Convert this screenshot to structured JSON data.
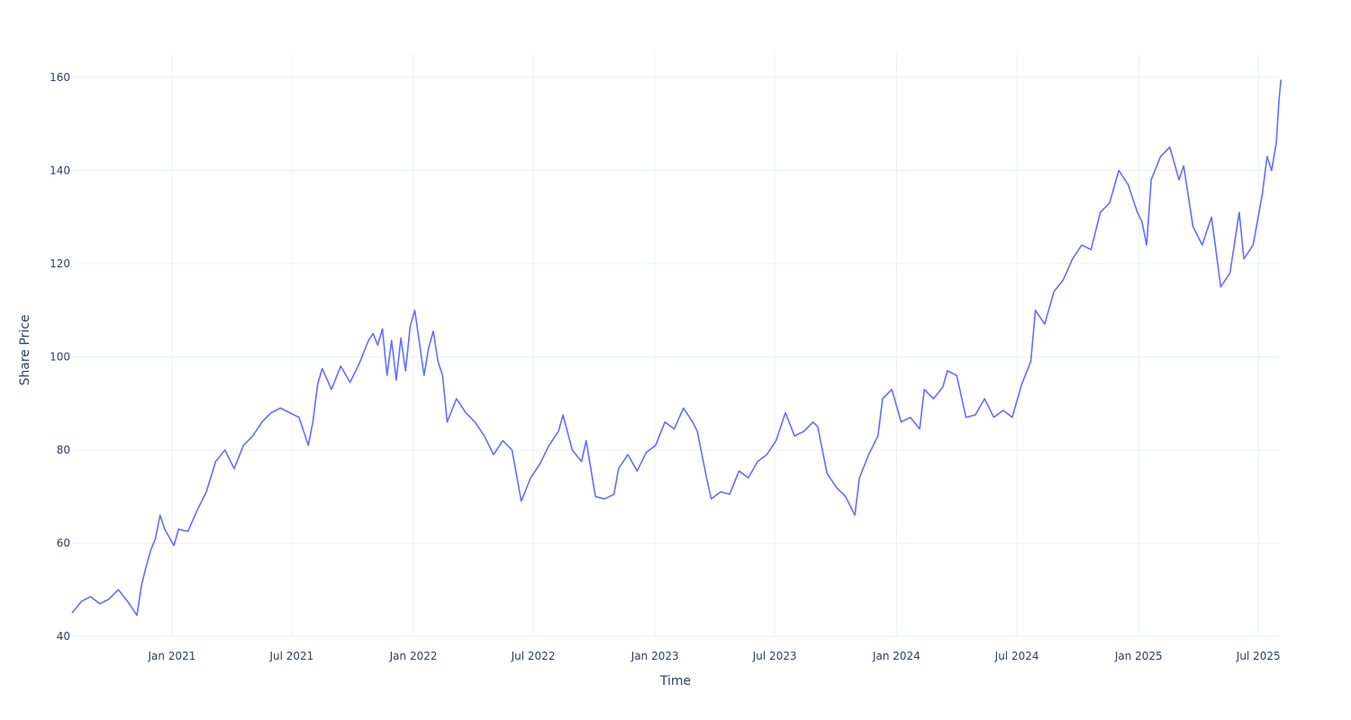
{
  "chart_data": {
    "type": "line",
    "title": "",
    "xlabel": "Time",
    "ylabel": "Share Price",
    "x_range": [
      "2020-08-03",
      "2025-08-01"
    ],
    "ylim": [
      40,
      165
    ],
    "grid": true,
    "legend": "none",
    "x_ticks": [
      {
        "date": "2021-01-01",
        "label": "Jan 2021"
      },
      {
        "date": "2021-07-01",
        "label": "Jul 2021"
      },
      {
        "date": "2022-01-01",
        "label": "Jan 2022"
      },
      {
        "date": "2022-07-01",
        "label": "Jul 2022"
      },
      {
        "date": "2023-01-01",
        "label": "Jan 2023"
      },
      {
        "date": "2023-07-01",
        "label": "Jul 2023"
      },
      {
        "date": "2024-01-01",
        "label": "Jan 2024"
      },
      {
        "date": "2024-07-01",
        "label": "Jul 2024"
      },
      {
        "date": "2025-01-01",
        "label": "Jan 2025"
      },
      {
        "date": "2025-07-01",
        "label": "Jul 2025"
      }
    ],
    "y_ticks": [
      {
        "value": 40,
        "label": "40"
      },
      {
        "value": 60,
        "label": "60"
      },
      {
        "value": 80,
        "label": "80"
      },
      {
        "value": 100,
        "label": "100"
      },
      {
        "value": 120,
        "label": "120"
      },
      {
        "value": 140,
        "label": "140"
      },
      {
        "value": 160,
        "label": "160"
      }
    ],
    "series": [
      {
        "color": "#636efa",
        "points": [
          [
            "2020-08-03",
            45
          ],
          [
            "2020-08-17",
            47.5
          ],
          [
            "2020-08-31",
            48.5
          ],
          [
            "2020-09-14",
            47
          ],
          [
            "2020-09-28",
            48
          ],
          [
            "2020-10-12",
            50
          ],
          [
            "2020-10-26",
            47.5
          ],
          [
            "2020-11-09",
            44.5
          ],
          [
            "2020-11-16",
            51
          ],
          [
            "2020-11-23",
            55
          ],
          [
            "2020-11-30",
            58.5
          ],
          [
            "2020-12-07",
            61
          ],
          [
            "2020-12-14",
            66
          ],
          [
            "2020-12-21",
            63
          ],
          [
            "2021-01-04",
            59.5
          ],
          [
            "2021-01-11",
            63
          ],
          [
            "2021-01-25",
            62.5
          ],
          [
            "2021-02-08",
            67
          ],
          [
            "2021-02-22",
            71
          ],
          [
            "2021-03-08",
            77.5
          ],
          [
            "2021-03-22",
            80
          ],
          [
            "2021-04-05",
            76
          ],
          [
            "2021-04-19",
            81
          ],
          [
            "2021-05-03",
            83
          ],
          [
            "2021-05-17",
            86
          ],
          [
            "2021-05-31",
            88
          ],
          [
            "2021-06-14",
            89
          ],
          [
            "2021-06-28",
            88
          ],
          [
            "2021-07-12",
            87
          ],
          [
            "2021-07-26",
            81
          ],
          [
            "2021-08-02",
            86
          ],
          [
            "2021-08-09",
            94
          ],
          [
            "2021-08-16",
            97.5
          ],
          [
            "2021-08-30",
            93
          ],
          [
            "2021-09-13",
            98
          ],
          [
            "2021-09-27",
            94.5
          ],
          [
            "2021-10-11",
            98.5
          ],
          [
            "2021-10-25",
            103.5
          ],
          [
            "2021-11-01",
            105
          ],
          [
            "2021-11-08",
            102.5
          ],
          [
            "2021-11-15",
            106
          ],
          [
            "2021-11-22",
            96
          ],
          [
            "2021-11-29",
            103.5
          ],
          [
            "2021-12-06",
            95
          ],
          [
            "2021-12-13",
            104
          ],
          [
            "2021-12-20",
            97
          ],
          [
            "2021-12-27",
            106.5
          ],
          [
            "2022-01-03",
            110
          ],
          [
            "2022-01-10",
            103
          ],
          [
            "2022-01-17",
            96
          ],
          [
            "2022-01-24",
            102
          ],
          [
            "2022-01-31",
            105.5
          ],
          [
            "2022-02-07",
            99
          ],
          [
            "2022-02-14",
            96
          ],
          [
            "2022-02-21",
            86
          ],
          [
            "2022-03-07",
            91
          ],
          [
            "2022-03-21",
            88
          ],
          [
            "2022-04-04",
            86
          ],
          [
            "2022-04-18",
            83
          ],
          [
            "2022-05-02",
            79
          ],
          [
            "2022-05-16",
            82
          ],
          [
            "2022-05-30",
            80
          ],
          [
            "2022-06-13",
            69
          ],
          [
            "2022-06-27",
            74
          ],
          [
            "2022-07-11",
            77
          ],
          [
            "2022-07-25",
            81
          ],
          [
            "2022-08-08",
            84
          ],
          [
            "2022-08-15",
            87.5
          ],
          [
            "2022-08-29",
            80
          ],
          [
            "2022-09-12",
            77.5
          ],
          [
            "2022-09-19",
            82
          ],
          [
            "2022-10-03",
            70
          ],
          [
            "2022-10-17",
            69.5
          ],
          [
            "2022-10-31",
            70.5
          ],
          [
            "2022-11-07",
            76
          ],
          [
            "2022-11-21",
            79
          ],
          [
            "2022-12-05",
            75.5
          ],
          [
            "2022-12-19",
            79.5
          ],
          [
            "2023-01-02",
            81
          ],
          [
            "2023-01-16",
            86
          ],
          [
            "2023-01-30",
            84.5
          ],
          [
            "2023-02-13",
            89
          ],
          [
            "2023-02-27",
            86
          ],
          [
            "2023-03-06",
            84
          ],
          [
            "2023-03-20",
            74
          ],
          [
            "2023-03-27",
            69.5
          ],
          [
            "2023-04-10",
            71
          ],
          [
            "2023-04-24",
            70.5
          ],
          [
            "2023-05-08",
            75.5
          ],
          [
            "2023-05-22",
            74
          ],
          [
            "2023-06-05",
            77.5
          ],
          [
            "2023-06-19",
            79
          ],
          [
            "2023-07-03",
            82
          ],
          [
            "2023-07-17",
            88
          ],
          [
            "2023-07-31",
            83
          ],
          [
            "2023-08-14",
            84
          ],
          [
            "2023-08-28",
            86
          ],
          [
            "2023-09-04",
            85
          ],
          [
            "2023-09-18",
            75
          ],
          [
            "2023-10-02",
            72
          ],
          [
            "2023-10-16",
            70
          ],
          [
            "2023-10-30",
            66
          ],
          [
            "2023-11-06",
            74
          ],
          [
            "2023-11-20",
            79
          ],
          [
            "2023-12-04",
            83
          ],
          [
            "2023-12-11",
            91
          ],
          [
            "2023-12-25",
            93
          ],
          [
            "2024-01-08",
            86
          ],
          [
            "2024-01-22",
            87
          ],
          [
            "2024-02-05",
            84.5
          ],
          [
            "2024-02-12",
            93
          ],
          [
            "2024-02-26",
            91
          ],
          [
            "2024-03-11",
            93.5
          ],
          [
            "2024-03-18",
            97
          ],
          [
            "2024-04-01",
            96
          ],
          [
            "2024-04-15",
            87
          ],
          [
            "2024-04-29",
            87.5
          ],
          [
            "2024-05-13",
            91
          ],
          [
            "2024-05-27",
            87
          ],
          [
            "2024-06-10",
            88.5
          ],
          [
            "2024-06-24",
            87
          ],
          [
            "2024-07-08",
            94
          ],
          [
            "2024-07-22",
            99
          ],
          [
            "2024-07-29",
            110
          ],
          [
            "2024-08-12",
            107
          ],
          [
            "2024-08-26",
            114
          ],
          [
            "2024-09-09",
            116.5
          ],
          [
            "2024-09-23",
            121
          ],
          [
            "2024-10-07",
            124
          ],
          [
            "2024-10-21",
            123
          ],
          [
            "2024-11-04",
            131
          ],
          [
            "2024-11-18",
            133
          ],
          [
            "2024-12-02",
            140
          ],
          [
            "2024-12-16",
            137
          ],
          [
            "2024-12-30",
            131
          ],
          [
            "2025-01-06",
            129
          ],
          [
            "2025-01-13",
            124
          ],
          [
            "2025-01-20",
            138
          ],
          [
            "2025-02-03",
            143
          ],
          [
            "2025-02-17",
            145
          ],
          [
            "2025-03-03",
            138
          ],
          [
            "2025-03-10",
            141
          ],
          [
            "2025-03-24",
            128
          ],
          [
            "2025-04-07",
            124
          ],
          [
            "2025-04-21",
            130
          ],
          [
            "2025-05-05",
            115
          ],
          [
            "2025-05-19",
            118
          ],
          [
            "2025-06-02",
            131
          ],
          [
            "2025-06-09",
            121
          ],
          [
            "2025-06-23",
            124
          ],
          [
            "2025-07-07",
            135
          ],
          [
            "2025-07-14",
            143
          ],
          [
            "2025-07-21",
            140
          ],
          [
            "2025-07-28",
            146
          ],
          [
            "2025-08-01",
            155
          ],
          [
            "2025-08-04",
            159.5
          ]
        ]
      }
    ]
  }
}
